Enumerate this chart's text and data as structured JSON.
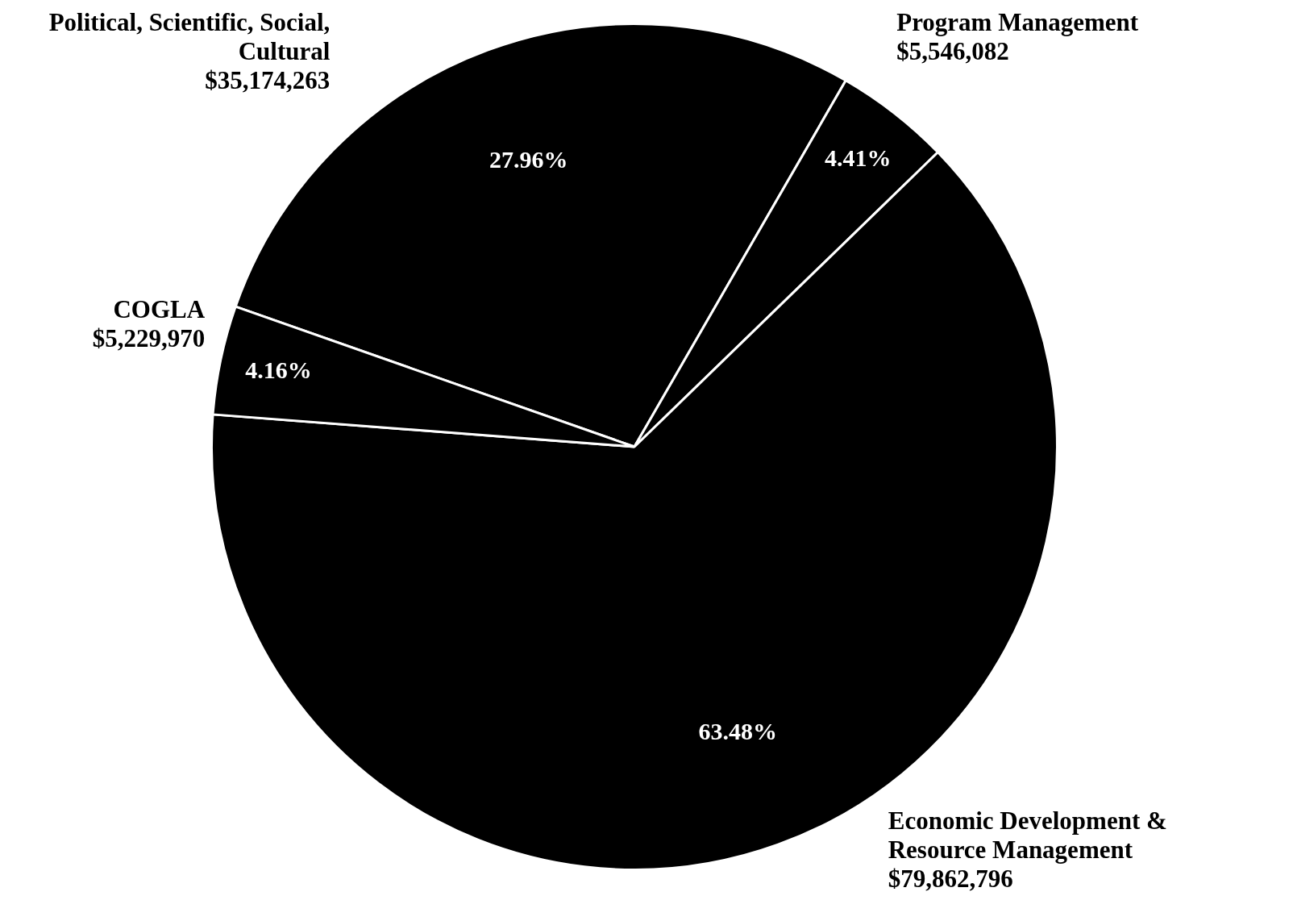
{
  "chart_data": {
    "type": "pie",
    "categories": [
      "Political, Scientific, Social, Cultural",
      "Program Management",
      "Economic Development & Resource Management",
      "COGLA"
    ],
    "values": [
      35174263,
      5546082,
      79862796,
      5229970
    ],
    "colors": [
      "#000000",
      "#000000",
      "#000000",
      "#000000"
    ],
    "value_labels": [
      "$35,174,263",
      "$5,546,082",
      "$79,862,796",
      "$5,229,970"
    ],
    "annotations": [
      "27.96%",
      "4.41%",
      "63.48%",
      "4.16%"
    ],
    "legend": false
  }
}
